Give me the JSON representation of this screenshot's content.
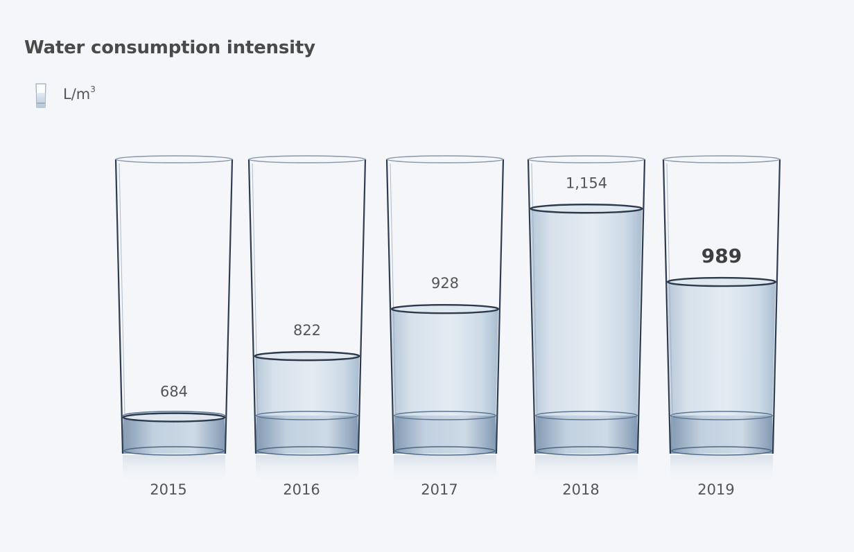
{
  "chart_data": {
    "type": "bar",
    "title": "Water consumption intensity",
    "unit": {
      "base": "L/m",
      "superscript": "3"
    },
    "categories": [
      "2015",
      "2016",
      "2017",
      "2018",
      "2019"
    ],
    "values": [
      684,
      822,
      928,
      1154,
      989
    ],
    "value_labels": [
      "684",
      "822",
      "928",
      "1,154",
      "989"
    ],
    "highlight_category": "2019",
    "legend": {
      "icon": "glass-icon",
      "placement": "top-left"
    },
    "colors": {
      "water": "#c9d6e3",
      "glass_edge": "#2e3c4f",
      "text": "#555555"
    }
  }
}
